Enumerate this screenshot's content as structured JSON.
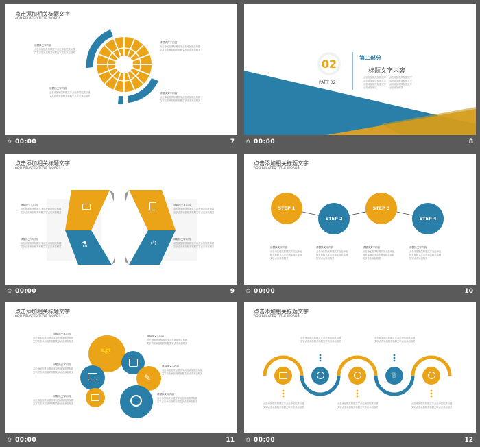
{
  "slide_title": "点击添加相关标题文字",
  "slide_subtitle": "ADD RELATED TITLE WORDS",
  "caption": "请替换文字内容",
  "body_text": "点击添加相关标题文字点击添加相关标题文字点击添加相关标题文字点击添加相关",
  "footer_time": "00:00",
  "colors": {
    "blue": "#2a7fa8",
    "orange": "#eba317"
  },
  "slides": [
    {
      "number": "7"
    },
    {
      "number": "8",
      "part_num": "02",
      "part_label": "PART 02",
      "section_title": "第二部分",
      "section_subtitle": "标题文字内容"
    },
    {
      "number": "9",
      "icons": [
        "monitor-icon",
        "document-icon",
        "lab-flask-icon",
        "power-plug-icon"
      ]
    },
    {
      "number": "10",
      "steps": [
        "STEP 1",
        "STEP 2",
        "STEP 3",
        "STEP 4"
      ]
    },
    {
      "number": "11",
      "icons": [
        "handshake-icon",
        "camera-icon",
        "chart-icon",
        "broom-icon",
        "image-icon",
        "search-home-icon"
      ]
    },
    {
      "number": "12",
      "icons": [
        "tv-icon",
        "lightbulb-icon",
        "basketball-icon",
        "trophy-icon",
        "bulb-sync-icon"
      ]
    }
  ]
}
